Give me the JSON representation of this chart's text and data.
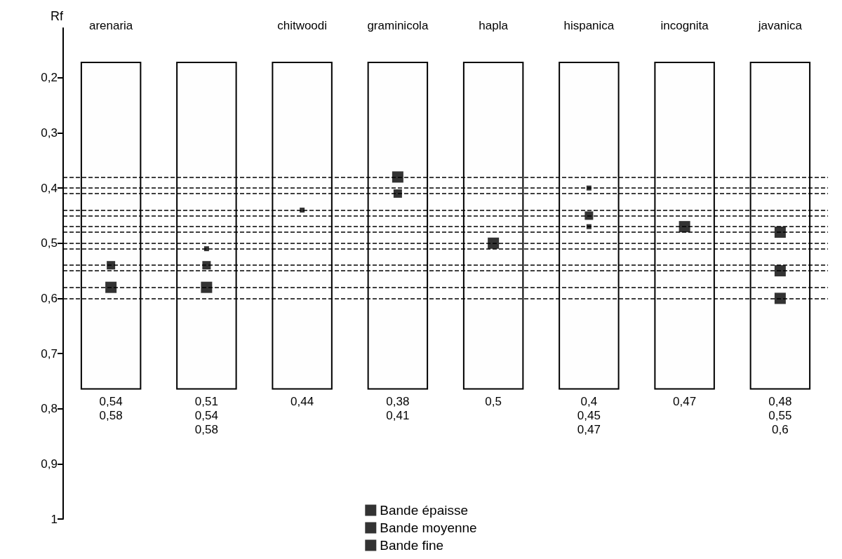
{
  "chart_data": {
    "type": "scatter",
    "ylabel": "Rf",
    "categories": [
      "arenaria",
      null,
      "chitwoodi",
      "graminicola",
      "hapla",
      "hispanica",
      "incognita",
      "javanica"
    ],
    "ylim": [
      1,
      0.11
    ],
    "yticks": [
      {
        "value": 0.2,
        "label": "0,2"
      },
      {
        "value": 0.3,
        "label": "0,3"
      },
      {
        "value": 0.4,
        "label": "0,4"
      },
      {
        "value": 0.5,
        "label": "0,5"
      },
      {
        "value": 0.6,
        "label": "0,6"
      },
      {
        "value": 0.7,
        "label": "0,7"
      },
      {
        "value": 0.8,
        "label": "0,8"
      },
      {
        "value": 0.9,
        "label": "0,9"
      },
      1
    ],
    "series": [
      {
        "name": "Bande épaisse",
        "color": "#000000",
        "values": [
          0.58,
          0.58,
          null,
          0.38,
          0.5,
          null,
          0.47,
          0.48
        ]
      },
      {
        "color": "#000000",
        "values": [
          null,
          null,
          null,
          null,
          null,
          null,
          null,
          0.55
        ]
      },
      {
        "color": "#000000",
        "values": [
          null,
          null,
          null,
          null,
          null,
          null,
          null,
          0.6
        ]
      },
      {
        "name": "Bande moyenne",
        "color": "#000000",
        "values": [
          0.54,
          0.54,
          null,
          0.41,
          null,
          0.45,
          null,
          null
        ]
      },
      {
        "name": "Bande fine",
        "color": "#000000",
        "values": [
          null,
          0.51,
          0.44,
          null,
          null,
          0.4,
          null,
          null
        ]
      },
      {
        "color": "#000000",
        "values": [
          null,
          null,
          null,
          null,
          null,
          0.47,
          null,
          null
        ]
      }
    ],
    "ref_lines": [
      {
        "axis": "y",
        "value": 0.38
      },
      {
        "axis": "y",
        "value": 0.4
      },
      {
        "axis": "y",
        "value": 0.41
      },
      {
        "axis": "y",
        "value": 0.44
      },
      {
        "axis": "y",
        "value": 0.45
      },
      {
        "axis": "y",
        "value": 0.47
      },
      {
        "axis": "y",
        "value": 0.48
      },
      {
        "axis": "y",
        "value": 0.5
      },
      {
        "axis": "y",
        "value": 0.51
      },
      {
        "axis": "y",
        "value": 0.54
      },
      {
        "axis": "y",
        "value": 0.55
      },
      {
        "axis": "y",
        "value": 0.58
      },
      {
        "axis": "y",
        "value": 0.6
      }
    ],
    "line_style": "dashed",
    "marker": "square",
    "annotations": [
      "0,54\n0,58",
      "0,51\n0,54\n0,58",
      "0,44",
      "0,38\n0,41",
      "0,5",
      "0,4\n0,45\n0,47",
      "0,47",
      "0,48\n0,55\n0,6"
    ],
    "legend": "bottom",
    "grid": false
  }
}
